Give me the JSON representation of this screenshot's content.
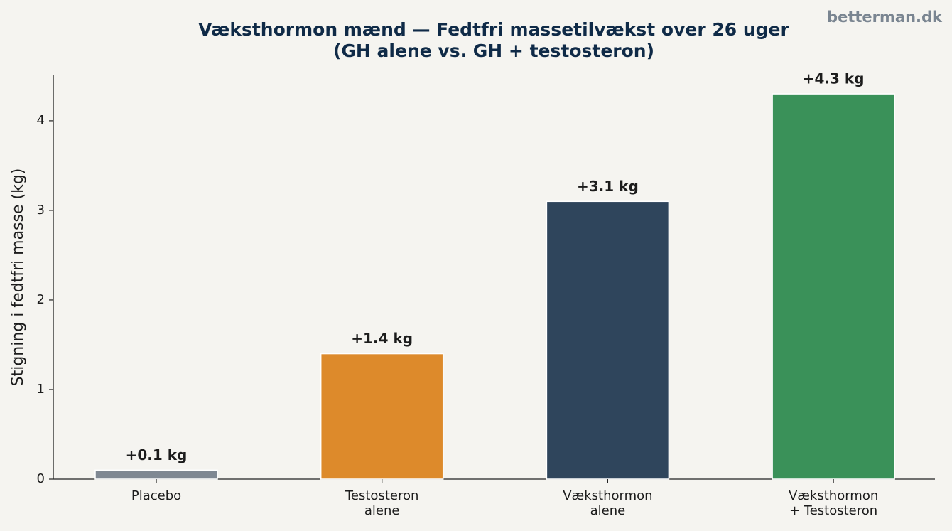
{
  "chart_data": {
    "type": "bar",
    "title": "Væksthormon mænd — Fedtfri massetilvækst over 26 uger\n(GH alene vs. GH + testosteron)",
    "watermark": "betterman.dk",
    "y_label": "Stigning i fedtfri masse (kg)",
    "categories": [
      "Placebo",
      "Testosteron\nalene",
      "Væksthormon\nalene",
      "Væksthormon\n+ Testosteron"
    ],
    "values": [
      0.1,
      1.4,
      3.1,
      4.3
    ],
    "value_labels": [
      "+0.1 kg",
      "+1.4 kg",
      "+3.1 kg",
      "+4.3 kg"
    ],
    "colors": [
      "#7f8893",
      "#dd8a2b",
      "#2f455c",
      "#3a9159"
    ],
    "ylim": [
      0,
      4.515
    ],
    "yticks": [
      0,
      1,
      2,
      3,
      4
    ],
    "grid": false
  }
}
